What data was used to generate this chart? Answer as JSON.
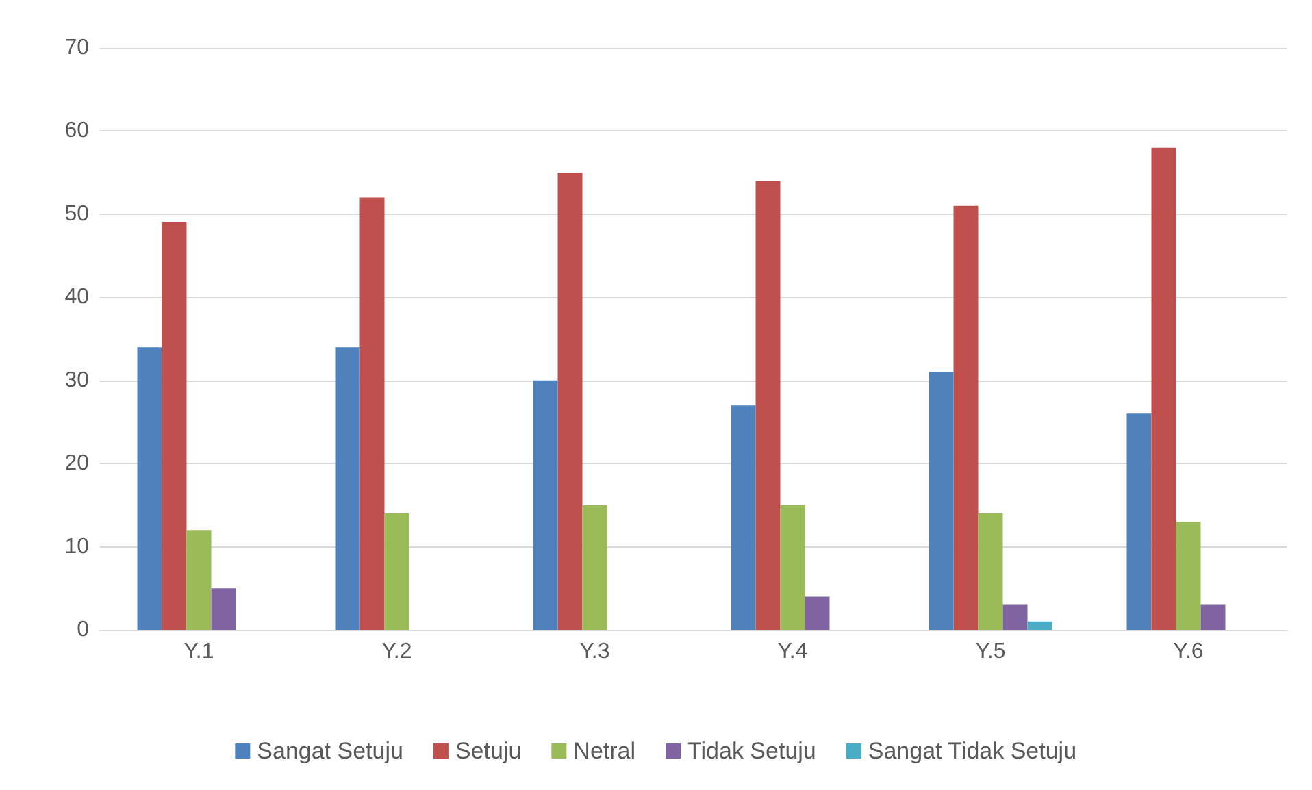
{
  "chart_data": {
    "type": "bar",
    "categories": [
      "Y.1",
      "Y.2",
      "Y.3",
      "Y.4",
      "Y.5",
      "Y.6"
    ],
    "series": [
      {
        "name": "Sangat Setuju",
        "color": "#4f81bd",
        "values": [
          34,
          34,
          30,
          27,
          31,
          26
        ]
      },
      {
        "name": "Setuju",
        "color": "#c0504d",
        "values": [
          49,
          52,
          55,
          54,
          51,
          58
        ]
      },
      {
        "name": "Netral",
        "color": "#9bbb59",
        "values": [
          12,
          14,
          15,
          15,
          14,
          13
        ]
      },
      {
        "name": "Tidak Setuju",
        "color": "#8064a2",
        "values": [
          5,
          0,
          0,
          4,
          3,
          3
        ]
      },
      {
        "name": "Sangat Tidak Setuju",
        "color": "#4bacc6",
        "values": [
          0,
          0,
          0,
          0,
          1,
          0
        ]
      }
    ],
    "ylim": [
      0,
      70
    ],
    "yticks": [
      0,
      10,
      20,
      30,
      40,
      50,
      60,
      70
    ],
    "grid": "y",
    "legend": "bottom"
  }
}
